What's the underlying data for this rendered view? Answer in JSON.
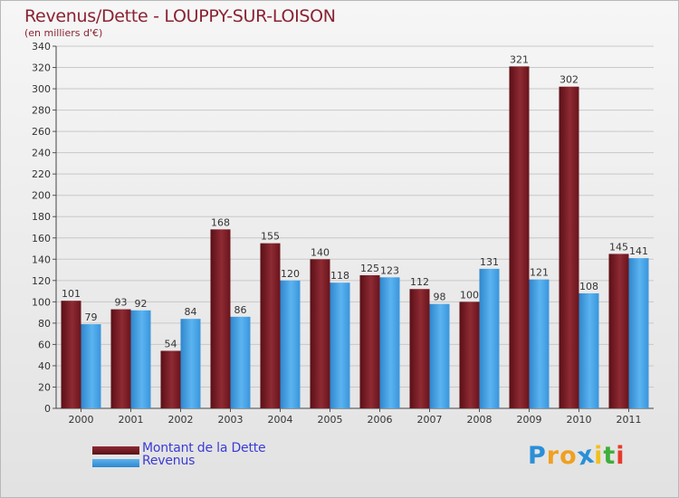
{
  "header": {
    "title": "Revenus/Dette - LOUPPY-SUR-LOISON",
    "subtitle": "(en milliers d'€)"
  },
  "chart_data": {
    "type": "bar",
    "title": "Revenus/Dette - LOUPPY-SUR-LOISON",
    "ylabel": "(en milliers d'€)",
    "xlabel": "",
    "categories": [
      "2000",
      "2001",
      "2002",
      "2003",
      "2004",
      "2005",
      "2006",
      "2007",
      "2008",
      "2009",
      "2010",
      "2011"
    ],
    "series": [
      {
        "name": "Montant de la Dette",
        "color": "#7a1a22",
        "values": [
          101,
          93,
          54,
          168,
          155,
          140,
          125,
          112,
          100,
          321,
          302,
          145
        ]
      },
      {
        "name": "Revenus",
        "color": "#3f9fe3",
        "values": [
          79,
          92,
          84,
          86,
          120,
          118,
          123,
          98,
          131,
          121,
          108,
          141
        ]
      }
    ],
    "ylim": [
      0,
      340
    ],
    "ytick_step": 20,
    "grid": true,
    "legend": "bottom-left"
  },
  "legend": {
    "items": [
      {
        "label": "Montant de la Dette",
        "color": "#7a1a22"
      },
      {
        "label": "Revenus",
        "color": "#3f9fe3"
      }
    ]
  },
  "logo": {
    "letters": [
      "P",
      "r",
      "o",
      "x",
      "i",
      "t",
      "i"
    ],
    "colors": [
      "#2a8fd8",
      "#f0a020",
      "#f0a020",
      "#2a8fd8",
      "#f0c020",
      "#3fae3a",
      "#e83a2a"
    ]
  }
}
